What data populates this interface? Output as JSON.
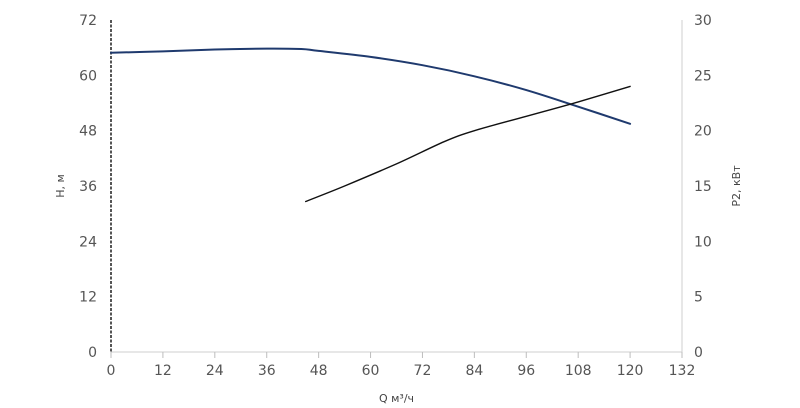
{
  "chart_data": {
    "type": "line",
    "xlabel": "Q м³/ч",
    "ylabel_left": "H, м",
    "ylabel_right": "P2, кВт",
    "xlim": [
      0,
      132
    ],
    "ylim_left": [
      0,
      72
    ],
    "ylim_right": [
      0,
      30
    ],
    "x_ticks": [
      "0",
      "12",
      "24",
      "36",
      "48",
      "60",
      "72",
      "84",
      "96",
      "108",
      "120",
      "132"
    ],
    "y_left_ticks": [
      "0",
      "12",
      "24",
      "36",
      "48",
      "60",
      "72"
    ],
    "y_right_ticks": [
      "0",
      "5",
      "10",
      "15",
      "20",
      "25",
      "30"
    ],
    "grid": false,
    "series": [
      {
        "axis": "left",
        "color": "#1f3a6e",
        "x": [
          0,
          12,
          24,
          36,
          44,
          48,
          60,
          72,
          84,
          96,
          108,
          120
        ],
        "y": [
          64.9,
          65.2,
          65.6,
          65.8,
          65.7,
          65.3,
          64.0,
          62.2,
          59.8,
          56.8,
          53.2,
          49.5
        ]
      },
      {
        "axis": "right",
        "color": "#111111",
        "x": [
          45,
          54,
          66,
          77,
          84,
          96,
          108,
          120
        ],
        "y": [
          13.6,
          15.0,
          17.0,
          19.0,
          20.0,
          21.3,
          22.6,
          24.0
        ]
      }
    ]
  }
}
